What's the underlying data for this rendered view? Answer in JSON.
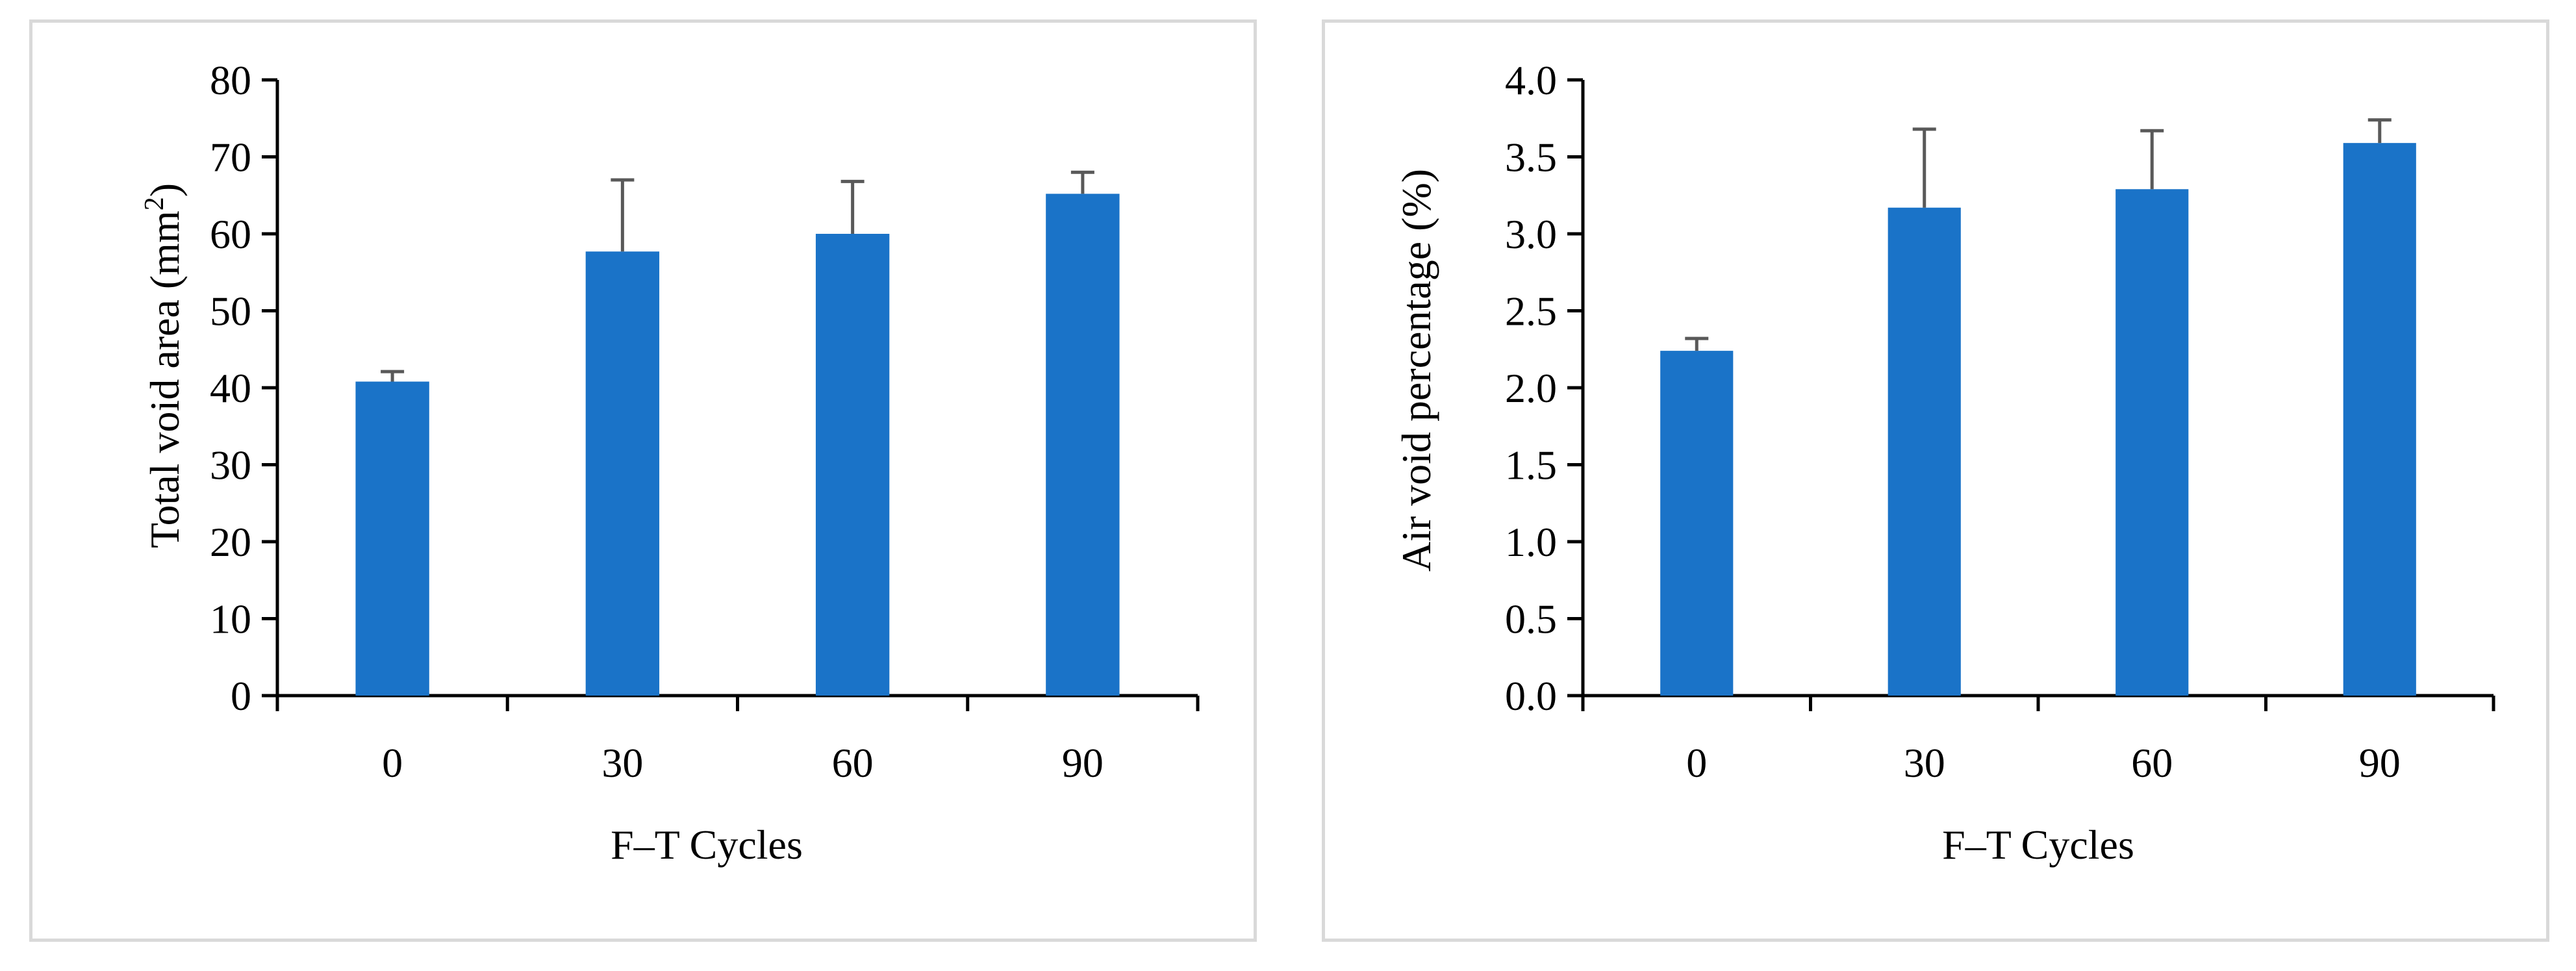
{
  "colors": {
    "bar": "#1A73C8",
    "error_bar": "#595959",
    "axis": "#000000",
    "panel_border": "#d9d9d9"
  },
  "chart_data": [
    {
      "type": "bar",
      "title": "",
      "xlabel": "F–T Cycles",
      "ylabel": "Total void area (mm²)",
      "ylabel_parts": {
        "pre": "Total void area (mm",
        "sup": "2",
        "post": ")"
      },
      "categories": [
        "0",
        "30",
        "60",
        "90"
      ],
      "values": [
        40.8,
        57.7,
        60.0,
        65.2
      ],
      "errors": [
        1.3,
        9.3,
        6.8,
        2.8
      ],
      "ylim": [
        0,
        80
      ],
      "yticks": [
        "0",
        "10",
        "20",
        "30",
        "40",
        "50",
        "60",
        "70",
        "80"
      ],
      "grid": false
    },
    {
      "type": "bar",
      "title": "",
      "xlabel": "F–T Cycles",
      "ylabel": "Air void percentage (%)",
      "categories": [
        "0",
        "30",
        "60",
        "90"
      ],
      "values": [
        2.24,
        3.17,
        3.29,
        3.59
      ],
      "errors": [
        0.08,
        0.51,
        0.38,
        0.15
      ],
      "ylim": [
        0,
        4.0
      ],
      "yticks": [
        "0.0",
        "0.5",
        "1.0",
        "1.5",
        "2.0",
        "2.5",
        "3.0",
        "3.5",
        "4.0"
      ],
      "grid": false
    }
  ]
}
